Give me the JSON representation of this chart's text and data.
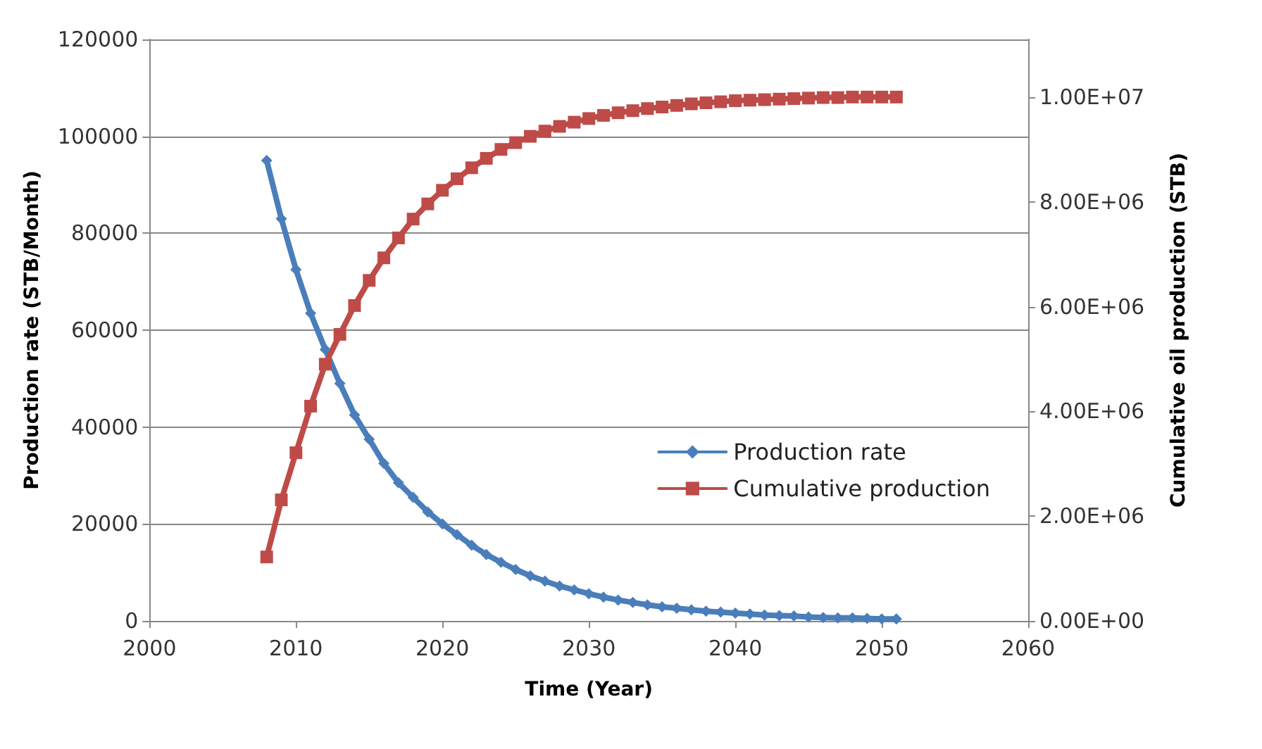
{
  "chart_data": {
    "type": "line",
    "xlabel": "Time (Year)",
    "ylabel": "Production rate (STB/Month)",
    "y2label": "Cumulative oil production (STB)",
    "x": [
      2008,
      2009,
      2010,
      2011,
      2012,
      2013,
      2014,
      2015,
      2016,
      2017,
      2018,
      2019,
      2020,
      2021,
      2022,
      2023,
      2024,
      2025,
      2026,
      2027,
      2028,
      2029,
      2030,
      2031,
      2032,
      2033,
      2034,
      2035,
      2036,
      2037,
      2038,
      2039,
      2040,
      2041,
      2042,
      2043,
      2044,
      2045,
      2046,
      2047,
      2048,
      2049,
      2050,
      2051
    ],
    "series": [
      {
        "name": "Production rate",
        "color": "#4a7ebb",
        "marker": "diamond",
        "values": [
          95000,
          83000,
          72500,
          63500,
          56000,
          49000,
          42500,
          37500,
          32500,
          28500,
          25500,
          22500,
          20000,
          17800,
          15600,
          13700,
          12100,
          10600,
          9300,
          8200,
          7200,
          6400,
          5600,
          4900,
          4300,
          3800,
          3300,
          2900,
          2600,
          2300,
          2000,
          1800,
          1600,
          1400,
          1200,
          1100,
          1000,
          800,
          700,
          600,
          600,
          500,
          400,
          400
        ]
      },
      {
        "name": "Cumulative production",
        "color": "#be4b48",
        "marker": "square",
        "axis": "y2",
        "values": [
          1220000,
          2310000,
          3210000,
          4100000,
          4900000,
          5470000,
          6020000,
          6500000,
          6930000,
          7310000,
          7670000,
          7960000,
          8220000,
          8440000,
          8650000,
          8830000,
          9000000,
          9130000,
          9250000,
          9350000,
          9440000,
          9520000,
          9590000,
          9650000,
          9700000,
          9740000,
          9780000,
          9810000,
          9840000,
          9870000,
          9890000,
          9910000,
          9930000,
          9940000,
          9950000,
          9960000,
          9970000,
          9980000,
          9990000,
          9990000,
          10000000,
          10000000,
          10000000,
          10000000
        ]
      }
    ],
    "xlim": [
      2000,
      2060
    ],
    "xticks": [
      2000,
      2010,
      2020,
      2030,
      2040,
      2050,
      2060
    ],
    "ylim": [
      0,
      120000
    ],
    "yticks": [
      0,
      20000,
      40000,
      60000,
      80000,
      100000,
      120000
    ],
    "y2lim": [
      0,
      11100000
    ],
    "y2ticks": [
      {
        "value": 0,
        "label": "0.00E+00"
      },
      {
        "value": 2000000,
        "label": "2.00E+06"
      },
      {
        "value": 4000000,
        "label": "4.00E+06"
      },
      {
        "value": 6000000,
        "label": "6.00E+06"
      },
      {
        "value": 8000000,
        "label": "8.00E+06"
      },
      {
        "value": 10000000,
        "label": "1.00E+07"
      }
    ],
    "grid": "y",
    "legend": "right",
    "line_style": "solid"
  }
}
